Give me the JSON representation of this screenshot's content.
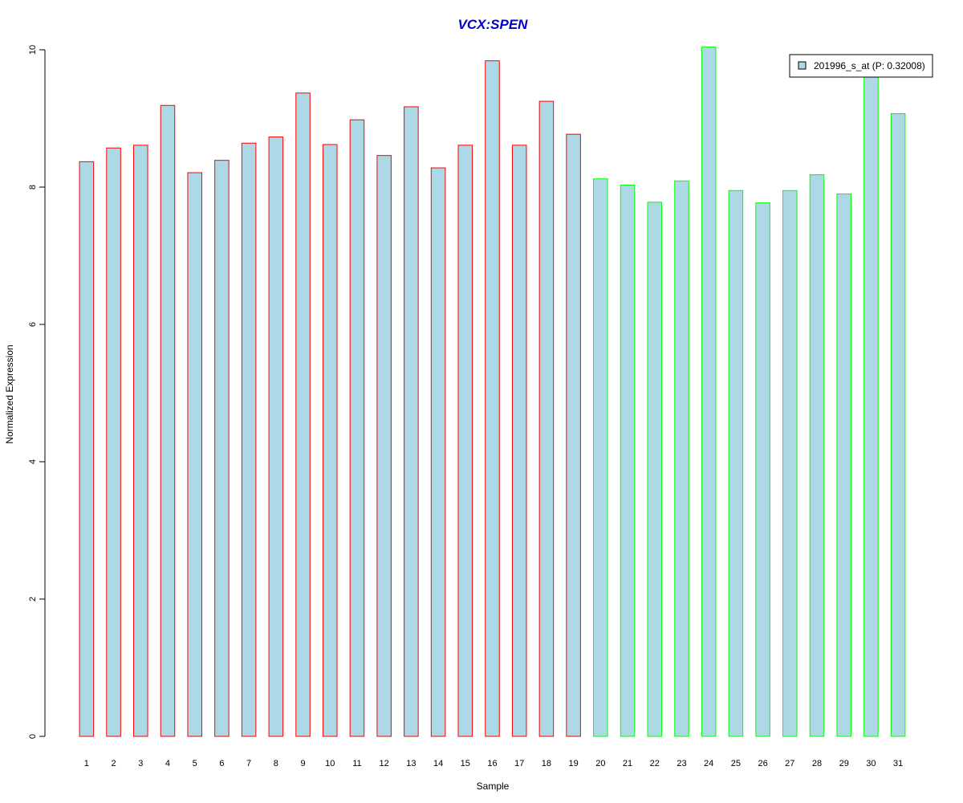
{
  "chart_data": {
    "type": "bar",
    "title": "VCX:SPEN",
    "xlabel": "Sample",
    "ylabel": "Normalized Expression",
    "ylim": [
      0,
      10
    ],
    "yticks": [
      0,
      2,
      4,
      6,
      8,
      10
    ],
    "grid": false,
    "legend_position": "top-right",
    "categories": [
      "1",
      "2",
      "3",
      "4",
      "5",
      "6",
      "7",
      "8",
      "9",
      "10",
      "11",
      "12",
      "13",
      "14",
      "15",
      "16",
      "17",
      "18",
      "19",
      "20",
      "21",
      "22",
      "23",
      "24",
      "25",
      "26",
      "27",
      "28",
      "29",
      "30",
      "31"
    ],
    "series": [
      {
        "name": "201996_s_at (P: 0.32008)",
        "values": [
          8.37,
          8.57,
          8.61,
          9.19,
          8.21,
          8.39,
          8.64,
          8.73,
          9.37,
          8.62,
          8.98,
          8.46,
          9.17,
          8.28,
          8.61,
          9.84,
          8.61,
          9.25,
          8.77,
          8.12,
          8.03,
          7.78,
          8.09,
          10.04,
          7.95,
          7.77,
          7.95,
          8.18,
          7.9,
          9.72,
          9.07
        ],
        "fill_color": "#add8e6"
      }
    ],
    "groups": [
      {
        "from": 1,
        "to": 19,
        "border_color": "#ff0000"
      },
      {
        "from": 20,
        "to": 31,
        "border_color": "#00ff00"
      }
    ],
    "title_color": "#0000cc"
  }
}
